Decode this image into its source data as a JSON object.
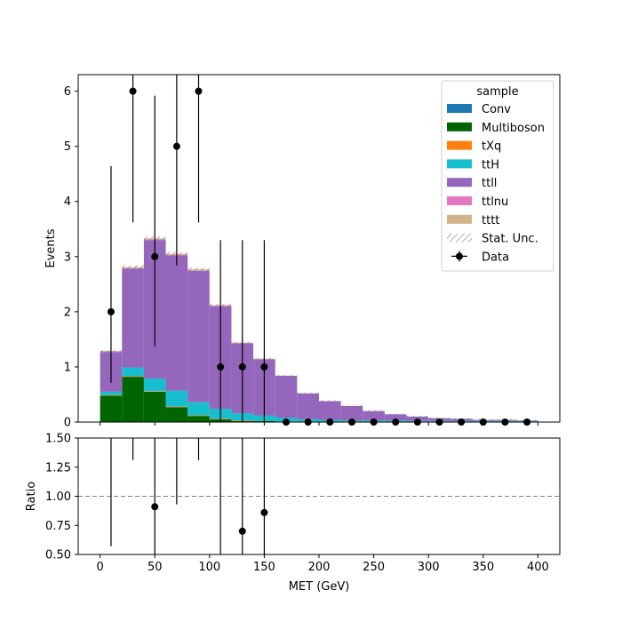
{
  "chart_data": [
    {
      "type": "stacked-histogram",
      "panel": "main",
      "xlabel": "",
      "ylabel": "Events",
      "xlim": [
        -20,
        420
      ],
      "ylim": [
        0,
        6.3
      ],
      "bin_edges": [
        0,
        20,
        40,
        60,
        80,
        100,
        120,
        140,
        160,
        180,
        200,
        220,
        240,
        260,
        280,
        300,
        320,
        340,
        360,
        380,
        400
      ],
      "x_ticks": [
        0,
        50,
        100,
        150,
        200,
        250,
        300,
        350,
        400
      ],
      "y_ticks": [
        0,
        1,
        2,
        3,
        4,
        5,
        6
      ],
      "legend": {
        "title": "sample",
        "placement": "top-right"
      },
      "series": [
        {
          "name": "Conv",
          "color": "#1f77b4",
          "values": [
            0,
            0,
            0,
            0,
            0,
            0,
            0,
            0,
            0,
            0,
            0,
            0,
            0,
            0,
            0,
            0,
            0,
            0,
            0,
            0
          ]
        },
        {
          "name": "Multiboson",
          "color": "#006400",
          "values": [
            0.48,
            0.82,
            0.55,
            0.27,
            0.11,
            0.05,
            0.02,
            0.02,
            0.01,
            0.01,
            0.01,
            0.01,
            0.01,
            0.01,
            0.01,
            0.01,
            0.01,
            0.01,
            0.01,
            0.01
          ]
        },
        {
          "name": "tXq",
          "color": "#ff7f0e",
          "values": [
            0.01,
            0.01,
            0.01,
            0.01,
            0.01,
            0.01,
            0.01,
            0,
            0,
            0,
            0,
            0,
            0,
            0,
            0,
            0,
            0,
            0,
            0,
            0
          ]
        },
        {
          "name": "ttH",
          "color": "#17becf",
          "values": [
            0.06,
            0.16,
            0.23,
            0.29,
            0.24,
            0.18,
            0.13,
            0.1,
            0.07,
            0.04,
            0.03,
            0.02,
            0.02,
            0.02,
            0.01,
            0.01,
            0.01,
            0.01,
            0.01,
            0.01
          ]
        },
        {
          "name": "ttll",
          "color": "#9467bd",
          "values": [
            0.72,
            1.79,
            2.51,
            2.45,
            2.38,
            1.86,
            1.27,
            1.02,
            0.76,
            0.47,
            0.34,
            0.26,
            0.17,
            0.11,
            0.08,
            0.05,
            0.04,
            0.02,
            0.02,
            0.01
          ]
        },
        {
          "name": "ttlnu",
          "color": "#e377c2",
          "values": [
            0.01,
            0.01,
            0.01,
            0.01,
            0.01,
            0.01,
            0,
            0,
            0,
            0,
            0,
            0,
            0,
            0,
            0,
            0,
            0,
            0,
            0,
            0
          ]
        },
        {
          "name": "tttt",
          "color": "#d2b48c",
          "values": [
            0.01,
            0.02,
            0.02,
            0.02,
            0.02,
            0.01,
            0.01,
            0.01,
            0,
            0,
            0,
            0,
            0,
            0,
            0,
            0,
            0,
            0,
            0,
            0
          ]
        }
      ],
      "stat_unc_label": "Stat. Unc.",
      "data": {
        "name": "Data",
        "x": [
          10,
          30,
          50,
          70,
          90,
          110,
          130,
          150,
          170,
          190,
          210,
          230,
          250,
          270,
          290,
          310,
          330,
          350,
          370,
          390
        ],
        "y": [
          2,
          6,
          3,
          5,
          6,
          1,
          1,
          1,
          0,
          0,
          0,
          0,
          0,
          0,
          0,
          0,
          0,
          0,
          0,
          0
        ],
        "yerr_low": [
          1.29,
          2.38,
          1.63,
          2.16,
          2.38,
          1.0,
          1.0,
          1.0,
          0,
          0,
          0,
          0,
          0,
          0,
          0,
          0,
          0,
          0,
          0,
          0
        ],
        "yerr_high": [
          2.64,
          3.6,
          2.92,
          3.38,
          3.6,
          2.3,
          2.3,
          2.3,
          0,
          0,
          0,
          0,
          0,
          0,
          0,
          0,
          0,
          0,
          0,
          0
        ]
      }
    },
    {
      "type": "scatter",
      "panel": "ratio",
      "xlabel": "MET (GeV)",
      "ylabel": "Ratio",
      "xlim": [
        -20,
        420
      ],
      "ylim": [
        0.5,
        1.5
      ],
      "x_ticks": [
        0,
        50,
        100,
        150,
        200,
        250,
        300,
        350,
        400
      ],
      "y_ticks": [
        0.5,
        0.75,
        1.0,
        1.25,
        1.5
      ],
      "y_tick_labels": [
        "0.50",
        "0.75",
        "1.00",
        "1.25",
        "1.50"
      ],
      "reference_line": 1.0,
      "points": [
        {
          "x": 50,
          "y": 0.91,
          "err_low": 0.5,
          "err_high": 0.8
        },
        {
          "x": 130,
          "y": 0.7,
          "err_low": 0.7,
          "err_high": 1.6
        },
        {
          "x": 150,
          "y": 0.86,
          "err_low": 0.86,
          "err_high": 1.9
        }
      ],
      "bars_without_marker": [
        {
          "x": 10,
          "low": 0.57,
          "high": 1.5
        },
        {
          "x": 30,
          "low": 1.31,
          "high": 1.5
        },
        {
          "x": 70,
          "low": 0.93,
          "high": 1.5
        },
        {
          "x": 90,
          "low": 1.31,
          "high": 1.5
        },
        {
          "x": 110,
          "low": 0.5,
          "high": 1.5
        }
      ]
    }
  ]
}
